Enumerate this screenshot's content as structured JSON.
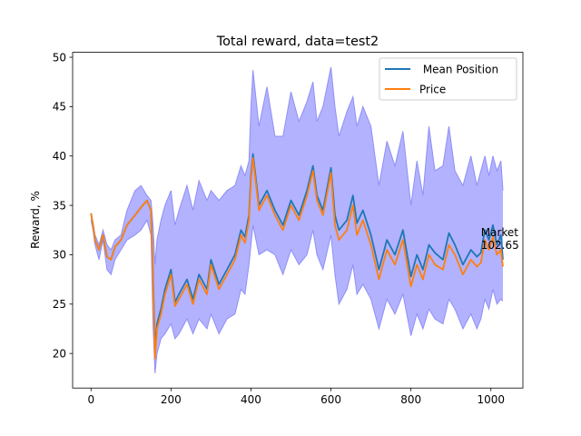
{
  "chart_data": {
    "type": "line",
    "title": "Total reward, data=test2",
    "xlabel": "",
    "ylabel": "Reward, %",
    "xlim": [
      -46,
      1080
    ],
    "ylim": [
      16.5,
      50.5
    ],
    "xticks": [
      0,
      200,
      400,
      600,
      800,
      1000
    ],
    "yticks": [
      20,
      25,
      30,
      35,
      40,
      45,
      50
    ],
    "grid": false,
    "legend_position": "top-right",
    "colors": {
      "mean_position": "#1f77b4",
      "price": "#ff7f0e",
      "band_fill": "#0000ff",
      "band_edge": "#8f8ff5"
    },
    "series": [
      {
        "name": " Mean Position",
        "x": [
          0,
          5,
          10,
          20,
          30,
          40,
          50,
          60,
          75,
          90,
          110,
          125,
          140,
          150,
          155,
          160,
          165,
          175,
          185,
          200,
          210,
          220,
          240,
          255,
          270,
          290,
          300,
          320,
          340,
          360,
          375,
          385,
          395,
          400,
          405,
          420,
          440,
          460,
          480,
          500,
          520,
          540,
          555,
          565,
          580,
          600,
          610,
          620,
          640,
          655,
          665,
          680,
          700,
          720,
          740,
          760,
          780,
          800,
          815,
          830,
          845,
          860,
          880,
          895,
          910,
          930,
          950,
          965,
          975,
          985,
          995,
          1005,
          1015,
          1025,
          1030
        ],
        "values": [
          34.2,
          33.0,
          31.5,
          30.5,
          32.0,
          29.8,
          29.5,
          30.8,
          31.5,
          33.0,
          34.0,
          34.8,
          35.5,
          34.5,
          28.0,
          20.5,
          23.0,
          24.5,
          26.5,
          28.5,
          25.2,
          26.0,
          27.5,
          25.5,
          28.0,
          26.5,
          29.5,
          27.0,
          28.5,
          30.0,
          32.5,
          31.8,
          34.0,
          38.0,
          40.2,
          35.0,
          36.5,
          34.5,
          33.0,
          35.5,
          34.0,
          36.5,
          39.0,
          36.0,
          34.5,
          38.8,
          34.0,
          32.5,
          33.5,
          36.0,
          33.2,
          34.5,
          32.0,
          28.5,
          31.5,
          30.0,
          32.5,
          27.8,
          30.0,
          28.5,
          31.0,
          30.2,
          29.5,
          32.2,
          31.0,
          29.0,
          30.5,
          29.8,
          30.2,
          32.5,
          31.5,
          33.0,
          31.0,
          32.0,
          29.5
        ]
      },
      {
        "name": "Price",
        "x": [
          0,
          5,
          10,
          20,
          30,
          40,
          50,
          60,
          75,
          90,
          110,
          125,
          140,
          150,
          155,
          160,
          165,
          175,
          185,
          200,
          210,
          220,
          240,
          255,
          270,
          290,
          300,
          320,
          340,
          360,
          375,
          385,
          395,
          400,
          405,
          420,
          440,
          460,
          480,
          500,
          520,
          540,
          555,
          565,
          580,
          600,
          610,
          620,
          640,
          655,
          665,
          680,
          700,
          720,
          740,
          760,
          780,
          800,
          815,
          830,
          845,
          860,
          880,
          895,
          910,
          930,
          950,
          965,
          975,
          985,
          995,
          1005,
          1015,
          1025,
          1030
        ],
        "values": [
          34.2,
          33.0,
          31.5,
          30.5,
          32.0,
          29.8,
          29.5,
          30.8,
          31.5,
          33.0,
          34.0,
          34.8,
          35.5,
          34.5,
          27.5,
          19.5,
          22.5,
          24.0,
          26.0,
          28.0,
          24.8,
          25.5,
          27.0,
          25.0,
          27.5,
          26.0,
          29.0,
          26.5,
          28.0,
          29.5,
          32.0,
          31.2,
          33.5,
          37.5,
          39.8,
          34.5,
          36.0,
          34.0,
          32.5,
          35.0,
          33.5,
          36.0,
          38.5,
          35.5,
          34.0,
          38.3,
          33.0,
          31.5,
          32.5,
          35.0,
          32.0,
          33.5,
          31.0,
          27.5,
          30.5,
          29.0,
          31.5,
          26.8,
          29.0,
          27.5,
          30.0,
          29.0,
          28.5,
          31.0,
          30.0,
          28.0,
          29.5,
          28.8,
          29.2,
          31.5,
          30.5,
          31.8,
          30.0,
          30.5,
          28.8
        ]
      }
    ],
    "band": {
      "upper": [
        34.0,
        33.2,
        32.0,
        31.0,
        32.5,
        31.0,
        30.5,
        31.5,
        32.0,
        34.5,
        36.5,
        37.0,
        36.0,
        35.5,
        33.0,
        29.0,
        31.5,
        33.5,
        35.0,
        36.5,
        33.0,
        34.5,
        37.0,
        34.5,
        37.5,
        35.5,
        36.5,
        35.5,
        36.5,
        37.0,
        39.0,
        38.0,
        39.5,
        45.0,
        48.7,
        43.0,
        47.0,
        42.0,
        42.0,
        46.5,
        43.5,
        45.5,
        47.5,
        43.5,
        45.0,
        49.0,
        45.0,
        42.0,
        44.5,
        46.0,
        43.0,
        45.0,
        43.0,
        37.0,
        41.5,
        39.0,
        42.5,
        35.0,
        39.5,
        36.0,
        43.0,
        38.5,
        39.0,
        43.0,
        38.5,
        37.0,
        40.0,
        37.0,
        38.5,
        40.0,
        38.0,
        40.0,
        38.5,
        39.5,
        36.5
      ],
      "lower": [
        33.5,
        32.5,
        31.0,
        29.5,
        31.5,
        28.5,
        28.0,
        29.5,
        30.5,
        31.5,
        32.0,
        32.5,
        33.5,
        32.0,
        23.0,
        18.0,
        20.0,
        21.5,
        22.0,
        23.0,
        21.5,
        22.0,
        23.5,
        22.0,
        23.5,
        22.5,
        24.0,
        22.0,
        23.5,
        24.0,
        26.5,
        26.0,
        29.0,
        31.0,
        33.0,
        30.0,
        30.5,
        30.0,
        28.0,
        30.5,
        29.0,
        30.0,
        32.5,
        30.0,
        28.5,
        32.0,
        28.0,
        25.0,
        26.5,
        29.0,
        26.0,
        27.0,
        25.5,
        22.5,
        25.5,
        24.0,
        26.0,
        21.8,
        24.0,
        22.5,
        24.5,
        23.5,
        23.0,
        25.5,
        24.5,
        22.5,
        24.0,
        22.5,
        23.5,
        25.5,
        24.5,
        26.5,
        25.0,
        25.5,
        25.3
      ]
    },
    "annotations": [
      {
        "lines": [
          "Market",
          "102.65"
        ],
        "x": 975,
        "y": 31.7
      }
    ]
  }
}
